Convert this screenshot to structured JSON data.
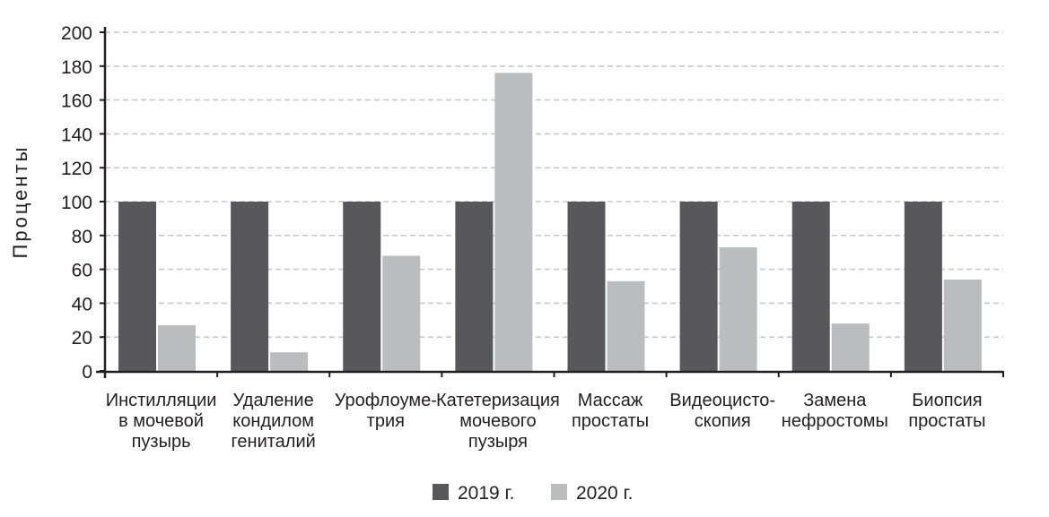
{
  "chart_data": {
    "type": "bar",
    "title": "",
    "xlabel": "",
    "ylabel": "Проценты",
    "ylim": [
      0,
      200
    ],
    "yticks": [
      0,
      20,
      40,
      60,
      80,
      100,
      120,
      140,
      160,
      180,
      200
    ],
    "grid": "horizontal dashed",
    "legend_position": "bottom",
    "categories": [
      [
        "Инстилляции",
        "в мочевой",
        "пузырь"
      ],
      [
        "Удаление",
        "кондилом",
        "гениталий"
      ],
      [
        "Урофлоуме-",
        "трия"
      ],
      [
        "Катетеризация",
        "мочевого",
        "пузыря"
      ],
      [
        "Массаж",
        "простаты"
      ],
      [
        "Видеоцисто-",
        "скопия"
      ],
      [
        "Замена",
        "нефростомы"
      ],
      [
        "Биопсия",
        "простаты"
      ]
    ],
    "series": [
      {
        "name": "2019 г.",
        "color": "#58585a",
        "values": [
          100,
          100,
          100,
          100,
          100,
          100,
          100,
          100
        ]
      },
      {
        "name": "2020 г.",
        "color": "#bbbcbe",
        "values": [
          27,
          11,
          68,
          176,
          53,
          73,
          28,
          54
        ]
      }
    ]
  }
}
